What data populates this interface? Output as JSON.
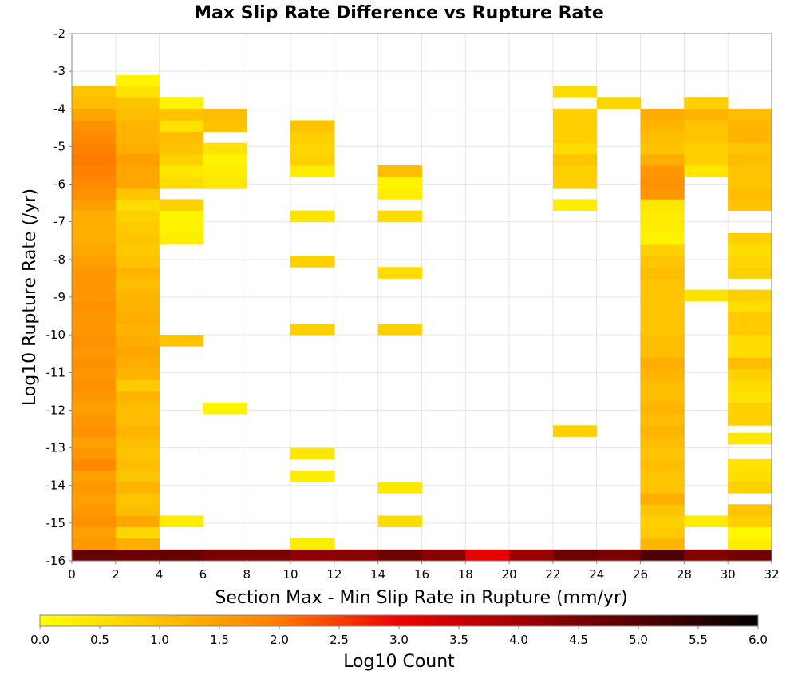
{
  "chart_data": {
    "type": "heatmap",
    "title": "Max Slip Rate Difference vs Rupture Rate",
    "xlabel": "Section Max - Min Slip Rate in Rupture (mm/yr)",
    "ylabel": "Log10 Rupture Rate (/yr)",
    "xlim": [
      0,
      32
    ],
    "ylim": [
      -16,
      -2
    ],
    "x_bin_width": 2,
    "y_bin_height": 0.3,
    "x_ticks": [
      0,
      2,
      4,
      6,
      8,
      10,
      12,
      14,
      16,
      18,
      20,
      22,
      24,
      26,
      28,
      30,
      32
    ],
    "y_ticks": [
      -2,
      -3,
      -4,
      -5,
      -6,
      -7,
      -8,
      -9,
      -10,
      -11,
      -12,
      -13,
      -14,
      -15,
      -16
    ],
    "grid": true,
    "colorbar": {
      "label": "Log10 Count",
      "min": 0.0,
      "max": 6.0,
      "ticks": [
        "0.0",
        "0.5",
        "1.0",
        "1.5",
        "2.0",
        "2.5",
        "3.0",
        "3.5",
        "4.0",
        "4.5",
        "5.0",
        "5.5",
        "6.0"
      ],
      "stops": [
        {
          "v": 0.0,
          "color": "#ffff00"
        },
        {
          "v": 1.0,
          "color": "#ffc400"
        },
        {
          "v": 2.0,
          "color": "#ff7a00"
        },
        {
          "v": 3.0,
          "color": "#ee0000"
        },
        {
          "v": 4.0,
          "color": "#a00000"
        },
        {
          "v": 5.0,
          "color": "#540000"
        },
        {
          "v": 6.0,
          "color": "#000000"
        }
      ]
    },
    "columns": [
      {
        "x": 0,
        "cells": [
          [
            -16.0,
            4.8
          ],
          [
            -15.7,
            1.6
          ],
          [
            -15.4,
            1.5
          ],
          [
            -15.1,
            1.7
          ],
          [
            -14.8,
            1.6
          ],
          [
            -14.5,
            1.5
          ],
          [
            -14.2,
            1.6
          ],
          [
            -13.9,
            1.5
          ],
          [
            -13.6,
            1.8
          ],
          [
            -13.3,
            1.6
          ],
          [
            -13.0,
            1.5
          ],
          [
            -12.7,
            1.7
          ],
          [
            -12.4,
            1.6
          ],
          [
            -12.1,
            1.5
          ],
          [
            -11.8,
            1.6
          ],
          [
            -11.5,
            1.7
          ],
          [
            -11.2,
            1.6
          ],
          [
            -10.9,
            1.7
          ],
          [
            -10.6,
            1.6
          ],
          [
            -10.3,
            1.7
          ],
          [
            -10.0,
            1.6
          ],
          [
            -9.7,
            1.6
          ],
          [
            -9.4,
            1.7
          ],
          [
            -9.1,
            1.6
          ],
          [
            -8.8,
            1.6
          ],
          [
            -8.5,
            1.6
          ],
          [
            -8.2,
            1.5
          ],
          [
            -7.9,
            1.4
          ],
          [
            -7.6,
            1.3
          ],
          [
            -7.3,
            1.3
          ],
          [
            -7.0,
            1.3
          ],
          [
            -6.7,
            1.5
          ],
          [
            -6.4,
            1.7
          ],
          [
            -6.1,
            1.8
          ],
          [
            -5.8,
            1.9
          ],
          [
            -5.5,
            2.0
          ],
          [
            -5.2,
            1.9
          ],
          [
            -4.9,
            1.8
          ],
          [
            -4.6,
            1.7
          ],
          [
            -4.3,
            1.4
          ],
          [
            -4.0,
            1.1
          ],
          [
            -3.7,
            1.0
          ]
        ]
      },
      {
        "x": 2,
        "cells": [
          [
            -16.0,
            4.7
          ],
          [
            -15.7,
            1.3
          ],
          [
            -15.4,
            0.7
          ],
          [
            -15.1,
            1.4
          ],
          [
            -14.8,
            1.1
          ],
          [
            -14.5,
            1.0
          ],
          [
            -14.2,
            1.2
          ],
          [
            -13.9,
            1.0
          ],
          [
            -13.6,
            1.1
          ],
          [
            -13.3,
            1.0
          ],
          [
            -13.0,
            1.1
          ],
          [
            -12.7,
            1.2
          ],
          [
            -12.4,
            1.1
          ],
          [
            -12.1,
            1.1
          ],
          [
            -11.8,
            1.2
          ],
          [
            -11.5,
            0.9
          ],
          [
            -11.2,
            1.2
          ],
          [
            -10.9,
            1.3
          ],
          [
            -10.6,
            1.4
          ],
          [
            -10.3,
            1.3
          ],
          [
            -10.0,
            1.2
          ],
          [
            -9.7,
            1.3
          ],
          [
            -9.4,
            1.2
          ],
          [
            -9.1,
            1.2
          ],
          [
            -8.8,
            1.1
          ],
          [
            -8.5,
            1.2
          ],
          [
            -8.2,
            1.0
          ],
          [
            -7.9,
            0.9
          ],
          [
            -7.6,
            1.0
          ],
          [
            -7.3,
            0.9
          ],
          [
            -7.0,
            0.8
          ],
          [
            -6.7,
            0.6
          ],
          [
            -6.4,
            1.0
          ],
          [
            -6.1,
            1.4
          ],
          [
            -5.8,
            1.4
          ],
          [
            -5.5,
            1.5
          ],
          [
            -5.2,
            1.3
          ],
          [
            -4.9,
            1.2
          ],
          [
            -4.6,
            1.2
          ],
          [
            -4.3,
            1.1
          ],
          [
            -4.0,
            1.0
          ],
          [
            -3.7,
            0.5
          ],
          [
            -3.4,
            0.2
          ]
        ]
      },
      {
        "x": 4,
        "cells": [
          [
            -16.0,
            4.8
          ],
          [
            -15.1,
            0.3
          ],
          [
            -10.3,
            1.0
          ],
          [
            -7.6,
            0.3
          ],
          [
            -7.3,
            0.2
          ],
          [
            -7.0,
            0.2
          ],
          [
            -6.7,
            0.8
          ],
          [
            -6.1,
            0.6
          ],
          [
            -5.8,
            0.4
          ],
          [
            -5.5,
            0.8
          ],
          [
            -5.2,
            1.0
          ],
          [
            -4.9,
            1.1
          ],
          [
            -4.6,
            0.5
          ],
          [
            -4.3,
            1.0
          ],
          [
            -4.0,
            0.2
          ]
        ]
      },
      {
        "x": 6,
        "cells": [
          [
            -16.0,
            4.5
          ],
          [
            -12.1,
            0.2
          ],
          [
            -6.1,
            0.4
          ],
          [
            -5.8,
            0.3
          ],
          [
            -5.5,
            0.2
          ],
          [
            -5.2,
            0.5
          ],
          [
            -4.6,
            1.0
          ],
          [
            -4.3,
            1.1
          ]
        ]
      },
      {
        "x": 8,
        "cells": [
          [
            -16.0,
            4.5
          ]
        ]
      },
      {
        "x": 10,
        "cells": [
          [
            -16.0,
            4.2
          ],
          [
            -15.7,
            0.3
          ],
          [
            -13.9,
            0.3
          ],
          [
            -13.3,
            0.4
          ],
          [
            -10.0,
            0.8
          ],
          [
            -8.2,
            0.8
          ],
          [
            -7.0,
            0.5
          ],
          [
            -5.8,
            0.3
          ],
          [
            -5.5,
            0.8
          ],
          [
            -5.2,
            0.7
          ],
          [
            -4.9,
            0.8
          ],
          [
            -4.6,
            1.0
          ]
        ]
      },
      {
        "x": 12,
        "cells": [
          [
            -16.0,
            4.3
          ]
        ]
      },
      {
        "x": 14,
        "cells": [
          [
            -16.0,
            4.7
          ],
          [
            -15.1,
            0.6
          ],
          [
            -14.2,
            0.4
          ],
          [
            -10.0,
            0.8
          ],
          [
            -8.5,
            0.6
          ],
          [
            -7.0,
            0.6
          ],
          [
            -6.4,
            0.3
          ],
          [
            -6.1,
            0.2
          ],
          [
            -5.8,
            1.1
          ]
        ]
      },
      {
        "x": 16,
        "cells": [
          [
            -16.0,
            4.3
          ]
        ]
      },
      {
        "x": 18,
        "cells": [
          [
            -16.0,
            3.1
          ]
        ]
      },
      {
        "x": 20,
        "cells": [
          [
            -16.0,
            4.1
          ]
        ]
      },
      {
        "x": 22,
        "cells": [
          [
            -16.0,
            4.7
          ],
          [
            -12.7,
            0.8
          ],
          [
            -6.7,
            0.3
          ],
          [
            -6.1,
            0.8
          ],
          [
            -5.8,
            0.8
          ],
          [
            -5.5,
            1.0
          ],
          [
            -5.2,
            0.6
          ],
          [
            -4.9,
            0.8
          ],
          [
            -4.6,
            0.8
          ],
          [
            -4.3,
            0.8
          ],
          [
            -3.7,
            0.6
          ]
        ]
      },
      {
        "x": 24,
        "cells": [
          [
            -16.0,
            4.5
          ],
          [
            -4.0,
            0.7
          ]
        ]
      },
      {
        "x": 26,
        "cells": [
          [
            -16.0,
            5.1
          ],
          [
            -15.7,
            1.2
          ],
          [
            -15.4,
            0.9
          ],
          [
            -15.1,
            0.8
          ],
          [
            -14.8,
            1.0
          ],
          [
            -14.5,
            1.3
          ],
          [
            -14.2,
            1.0
          ],
          [
            -13.9,
            1.0
          ],
          [
            -13.6,
            1.1
          ],
          [
            -13.3,
            1.0
          ],
          [
            -13.0,
            1.1
          ],
          [
            -12.7,
            1.2
          ],
          [
            -12.4,
            1.1
          ],
          [
            -12.1,
            1.2
          ],
          [
            -11.8,
            1.1
          ],
          [
            -11.5,
            1.1
          ],
          [
            -11.2,
            1.2
          ],
          [
            -10.9,
            1.3
          ],
          [
            -10.6,
            1.1
          ],
          [
            -10.3,
            1.1
          ],
          [
            -10.0,
            1.0
          ],
          [
            -9.7,
            1.0
          ],
          [
            -9.4,
            1.0
          ],
          [
            -9.1,
            1.0
          ],
          [
            -8.8,
            1.0
          ],
          [
            -8.5,
            1.1
          ],
          [
            -8.2,
            1.0
          ],
          [
            -7.9,
            0.8
          ],
          [
            -7.6,
            0.2
          ],
          [
            -7.3,
            0.3
          ],
          [
            -7.0,
            0.3
          ],
          [
            -6.7,
            0.4
          ],
          [
            -6.4,
            1.6
          ],
          [
            -6.1,
            1.7
          ],
          [
            -5.8,
            1.6
          ],
          [
            -5.5,
            1.3
          ],
          [
            -5.2,
            1.0
          ],
          [
            -4.9,
            1.1
          ],
          [
            -4.6,
            1.2
          ],
          [
            -4.3,
            1.3
          ]
        ]
      },
      {
        "x": 28,
        "cells": [
          [
            -16.0,
            4.4
          ],
          [
            -15.1,
            0.3
          ],
          [
            -9.1,
            0.5
          ],
          [
            -5.8,
            0.4
          ],
          [
            -5.5,
            0.8
          ],
          [
            -5.2,
            0.8
          ],
          [
            -4.9,
            1.0
          ],
          [
            -4.6,
            1.0
          ],
          [
            -4.3,
            1.2
          ],
          [
            -4.0,
            0.8
          ]
        ]
      },
      {
        "x": 30,
        "cells": [
          [
            -16.0,
            4.6
          ],
          [
            -15.7,
            0.3
          ],
          [
            -15.4,
            0.1
          ],
          [
            -15.1,
            0.8
          ],
          [
            -14.8,
            1.0
          ],
          [
            -14.2,
            0.8
          ],
          [
            -13.9,
            0.6
          ],
          [
            -13.6,
            0.5
          ],
          [
            -12.9,
            0.4
          ],
          [
            -12.4,
            0.8
          ],
          [
            -12.1,
            0.8
          ],
          [
            -11.8,
            0.5
          ],
          [
            -11.5,
            0.6
          ],
          [
            -11.2,
            0.8
          ],
          [
            -10.9,
            1.1
          ],
          [
            -10.6,
            0.6
          ],
          [
            -10.3,
            0.6
          ],
          [
            -10.0,
            0.9
          ],
          [
            -9.7,
            0.9
          ],
          [
            -9.4,
            0.6
          ],
          [
            -9.1,
            0.8
          ],
          [
            -8.5,
            0.8
          ],
          [
            -8.2,
            0.7
          ],
          [
            -7.9,
            0.6
          ],
          [
            -7.6,
            0.8
          ],
          [
            -6.7,
            1.0
          ],
          [
            -6.4,
            1.1
          ],
          [
            -6.1,
            1.0
          ],
          [
            -5.8,
            1.0
          ],
          [
            -5.5,
            1.1
          ],
          [
            -5.2,
            1.0
          ],
          [
            -4.9,
            1.2
          ],
          [
            -4.6,
            1.2
          ],
          [
            -4.3,
            1.1
          ]
        ]
      }
    ]
  }
}
